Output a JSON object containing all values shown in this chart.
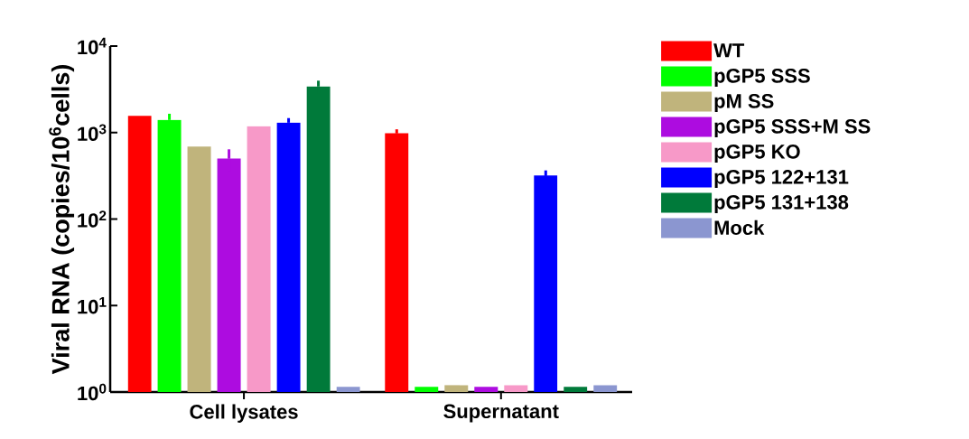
{
  "chart_data": {
    "type": "bar",
    "ylabel": "Viral RNA (copies/10$^{6}$cells)",
    "categories": [
      "Cell lysates",
      "Supernatant"
    ],
    "log": "y",
    "ylim": [
      1,
      10000
    ],
    "yticks": [
      {
        "value": 1,
        "label": "10$^{0}$"
      },
      {
        "value": 10,
        "label": "10$^{1}$"
      },
      {
        "value": 100,
        "label": "10$^{2}$"
      },
      {
        "value": 1000,
        "label": "10$^{3}$"
      },
      {
        "value": 10000,
        "label": "10$^{4}$"
      }
    ],
    "legend": "right",
    "grid": false,
    "series": [
      {
        "name": "WT",
        "color": "#ff0000",
        "values": [
          1560,
          980
        ],
        "errors": [
          null,
          110
        ]
      },
      {
        "name": "pGP5 SSS",
        "color": "#00ff00",
        "values": [
          1400,
          1.15
        ],
        "errors": [
          250,
          null
        ]
      },
      {
        "name": "pM SS",
        "color": "#c0b47c",
        "values": [
          690,
          1.2
        ],
        "errors": [
          null,
          null
        ]
      },
      {
        "name": "pGP5 SSS+M SS",
        "color": "#ad0ce0",
        "values": [
          500,
          1.15
        ],
        "errors": [
          140,
          null
        ]
      },
      {
        "name": "pGP5 KO",
        "color": "#f799c8",
        "values": [
          1180,
          1.2
        ],
        "errors": [
          null,
          null
        ]
      },
      {
        "name": "pGP5 122+131",
        "color": "#0000ff",
        "values": [
          1300,
          320
        ],
        "errors": [
          170,
          45
        ]
      },
      {
        "name": "pGP5 131+138",
        "color": "#007a3a",
        "values": [
          3410,
          1.15
        ],
        "errors": [
          570,
          null
        ]
      },
      {
        "name": "Mock",
        "color": "#8b96d0",
        "values": [
          1.15,
          1.2
        ],
        "errors": [
          null,
          null
        ]
      }
    ]
  }
}
